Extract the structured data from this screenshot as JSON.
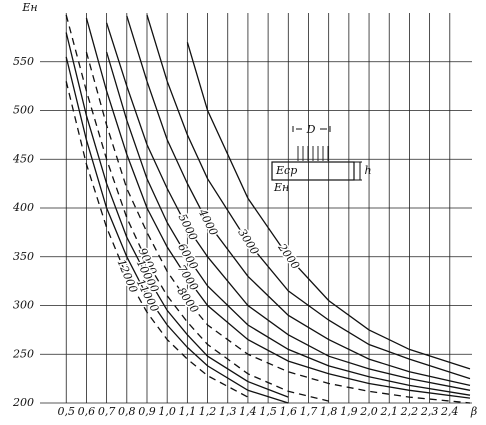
{
  "chart_data": {
    "type": "line",
    "x_label": "β",
    "y_label": "Eн",
    "x": [
      0.5,
      0.6,
      0.7,
      0.8,
      0.9,
      1.0,
      1.1,
      1.2,
      1.4,
      1.6,
      1.8,
      2.0,
      2.2,
      2.5
    ],
    "series": [
      {
        "name": "2000",
        "color": "#111",
        "dashed": false,
        "values": [
          null,
          null,
          null,
          null,
          null,
          null,
          570,
          500,
          410,
          350,
          305,
          275,
          255,
          235
        ]
      },
      {
        "name": "3000",
        "color": "#111",
        "dashed": false,
        "values": [
          null,
          null,
          null,
          null,
          598,
          530,
          475,
          430,
          365,
          315,
          285,
          260,
          245,
          225
        ]
      },
      {
        "name": "4000",
        "color": "#111",
        "dashed": false,
        "values": [
          null,
          null,
          null,
          597,
          530,
          470,
          425,
          385,
          330,
          290,
          265,
          245,
          232,
          218
        ]
      },
      {
        "name": "5000",
        "color": "#111",
        "dashed": false,
        "values": [
          null,
          null,
          590,
          525,
          465,
          420,
          380,
          350,
          300,
          270,
          248,
          235,
          225,
          213
        ]
      },
      {
        "name": "6000",
        "color": "#111",
        "dashed": false,
        "values": [
          null,
          null,
          560,
          490,
          430,
          385,
          350,
          320,
          280,
          255,
          238,
          227,
          218,
          208
        ]
      },
      {
        "name": "7000",
        "color": "#111",
        "dashed": false,
        "values": [
          null,
          595,
          520,
          455,
          400,
          360,
          328,
          300,
          265,
          243,
          230,
          220,
          213,
          205
        ]
      },
      {
        "name": "8000",
        "color": "#111",
        "dashed": true,
        "values": [
          null,
          560,
          485,
          420,
          375,
          335,
          305,
          280,
          250,
          232,
          220,
          212,
          206,
          200
        ]
      },
      {
        "name": "9000",
        "color": "#111",
        "dashed": true,
        "values": [
          598,
          520,
          450,
          390,
          345,
          310,
          283,
          260,
          230,
          212,
          202,
          null,
          null,
          null
        ]
      },
      {
        "name": "10000",
        "color": "#111",
        "dashed": false,
        "values": [
          580,
          495,
          425,
          370,
          330,
          295,
          270,
          248,
          222,
          206,
          null,
          null,
          null,
          null
        ]
      },
      {
        "name": "11000",
        "color": "#111",
        "dashed": false,
        "values": [
          555,
          470,
          400,
          350,
          310,
          280,
          257,
          238,
          213,
          200,
          null,
          null,
          null,
          null
        ]
      },
      {
        "name": "12000",
        "color": "#111",
        "dashed": true,
        "values": [
          530,
          445,
          380,
          330,
          293,
          265,
          245,
          228,
          206,
          null,
          null,
          null,
          null,
          null
        ]
      }
    ],
    "xlim": [
      0.37,
      2.51
    ],
    "ylim": [
      200,
      600
    ],
    "xticks": [
      {
        "value": 0.5,
        "label": "0,5"
      },
      {
        "value": 0.6,
        "label": "0,6"
      },
      {
        "value": 0.7,
        "label": "0,7"
      },
      {
        "value": 0.8,
        "label": "0,8"
      },
      {
        "value": 0.9,
        "label": "0,9"
      },
      {
        "value": 1.0,
        "label": "1,0"
      },
      {
        "value": 1.1,
        "label": "1,1"
      },
      {
        "value": 1.2,
        "label": "1,2"
      },
      {
        "value": 1.3,
        "label": "1,3"
      },
      {
        "value": 1.4,
        "label": "1,4"
      },
      {
        "value": 1.5,
        "label": "1,5"
      },
      {
        "value": 1.6,
        "label": "1,6"
      },
      {
        "value": 1.7,
        "label": "1,7"
      },
      {
        "value": 1.8,
        "label": "1,8"
      },
      {
        "value": 1.9,
        "label": "1,9"
      },
      {
        "value": 2.0,
        "label": "2,0"
      },
      {
        "value": 2.1,
        "label": "2,1"
      },
      {
        "value": 2.2,
        "label": "2,2"
      },
      {
        "value": 2.3,
        "label": "2,3"
      },
      {
        "value": 2.4,
        "label": "2,4"
      }
    ],
    "yticks": [
      200,
      250,
      300,
      350,
      400,
      450,
      500,
      550
    ],
    "grid": true,
    "inset": {
      "diameter": "D",
      "top_layer": "Eср",
      "bottom_layer": "Eн",
      "thickness": "h"
    }
  }
}
